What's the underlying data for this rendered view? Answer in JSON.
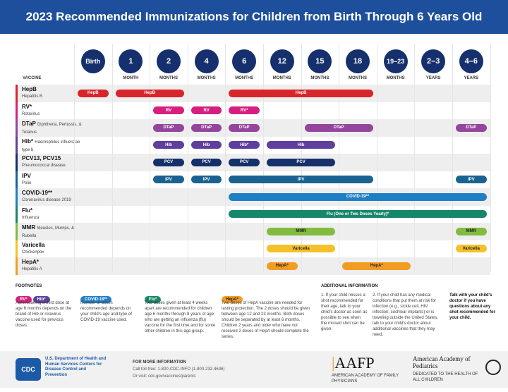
{
  "title": "2023 Recommended Immunizations for Children from Birth Through 6 Years Old",
  "vaccine_header": "VACCINE",
  "columns": [
    {
      "age": "Birth",
      "unit": ""
    },
    {
      "age": "1",
      "unit": "MONTH"
    },
    {
      "age": "2",
      "unit": "MONTHS"
    },
    {
      "age": "4",
      "unit": "MONTHS"
    },
    {
      "age": "6",
      "unit": "MONTHS"
    },
    {
      "age": "12",
      "unit": "MONTHS"
    },
    {
      "age": "15",
      "unit": "MONTHS"
    },
    {
      "age": "18",
      "unit": "MONTHS"
    },
    {
      "age": "19–23",
      "unit": "MONTHS"
    },
    {
      "age": "2–3",
      "unit": "YEARS"
    },
    {
      "age": "4–6",
      "unit": "YEARS"
    }
  ],
  "vaccines": [
    {
      "name": "HepB",
      "desc": "Hepatitis B",
      "inline": false,
      "color": "#d7262b",
      "doses": [
        {
          "label": "HepB",
          "from": 0,
          "to": 0
        },
        {
          "label": "HepB",
          "from": 1,
          "to": 2
        },
        {
          "label": "HepB",
          "from": 4,
          "to": 7
        }
      ]
    },
    {
      "name": "RV*",
      "desc": "Rotavirus",
      "inline": false,
      "color": "#d61f7f",
      "doses": [
        {
          "label": "RV",
          "from": 2,
          "to": 2
        },
        {
          "label": "RV",
          "from": 3,
          "to": 3
        },
        {
          "label": "RV*",
          "from": 4,
          "to": 4
        }
      ]
    },
    {
      "name": "DTaP",
      "desc": "Diphtheria, Pertussis, & Tetanus",
      "inline": true,
      "color": "#93469c",
      "doses": [
        {
          "label": "DTaP",
          "from": 2,
          "to": 2
        },
        {
          "label": "DTaP",
          "from": 3,
          "to": 3
        },
        {
          "label": "DTaP",
          "from": 4,
          "to": 4
        },
        {
          "label": "DTaP",
          "from": 6,
          "to": 7
        },
        {
          "label": "DTaP",
          "from": 10,
          "to": 10
        }
      ]
    },
    {
      "name": "Hib*",
      "desc": "Haemophilus influenzae type b",
      "inline": true,
      "color": "#5e3f9e",
      "doses": [
        {
          "label": "Hib",
          "from": 2,
          "to": 2
        },
        {
          "label": "Hib",
          "from": 3,
          "to": 3
        },
        {
          "label": "Hib*",
          "from": 4,
          "to": 4
        },
        {
          "label": "Hib",
          "from": 5,
          "to": 6
        }
      ]
    },
    {
      "name": "PCV13, PCV15",
      "desc": "Pneumococcal disease",
      "inline": false,
      "color": "#15306a",
      "doses": [
        {
          "label": "PCV",
          "from": 2,
          "to": 2
        },
        {
          "label": "PCV",
          "from": 3,
          "to": 3
        },
        {
          "label": "PCV",
          "from": 4,
          "to": 4
        },
        {
          "label": "PCV",
          "from": 5,
          "to": 6
        }
      ]
    },
    {
      "name": "IPV",
      "desc": "Polio",
      "inline": false,
      "color": "#1a6390",
      "doses": [
        {
          "label": "IPV",
          "from": 2,
          "to": 2
        },
        {
          "label": "IPV",
          "from": 3,
          "to": 3
        },
        {
          "label": "IPV",
          "from": 4,
          "to": 7
        },
        {
          "label": "IPV",
          "from": 10,
          "to": 10
        }
      ]
    },
    {
      "name": "COVID-19**",
      "desc": "Coronavirus disease 2019",
      "inline": false,
      "color": "#1f7fc6",
      "doses": [
        {
          "label": "COVID-19**",
          "from": 4,
          "to": 10
        }
      ]
    },
    {
      "name": "Flu*",
      "desc": "Influenza",
      "inline": false,
      "color": "#17866a",
      "doses": [
        {
          "label": "Flu (One or Two Doses Yearly)*",
          "from": 4,
          "to": 10
        }
      ]
    },
    {
      "name": "MMR",
      "desc": "Measles, Mumps, & Rubella",
      "inline": true,
      "color": "#82bb3f",
      "doses": [
        {
          "label": "MMR",
          "from": 5,
          "to": 6
        },
        {
          "label": "MMR",
          "from": 10,
          "to": 10
        }
      ]
    },
    {
      "name": "Varicella",
      "desc": "Chickenpox",
      "inline": false,
      "color": "#f5c12a",
      "doses": [
        {
          "label": "Varicella",
          "from": 5,
          "to": 6
        },
        {
          "label": "Varicella",
          "from": 10,
          "to": 10
        }
      ]
    },
    {
      "name": "HepA*",
      "desc": "Hepatitis A",
      "inline": false,
      "color": "#f39c24",
      "doses": [
        {
          "label": "HepA*",
          "from": 5,
          "to": 5
        },
        {
          "label": "HepA*",
          "from": 7,
          "to": 8
        }
      ]
    }
  ],
  "footnotes": {
    "heading": "FOOTNOTES",
    "items": [
      {
        "pills": [
          "RV*",
          "Hib*"
        ],
        "colors": [
          "#d61f7f",
          "#5e3f9e"
        ],
        "text": "Administering a third dose at age 6 months depends on the brand of Hib or rotavirus vaccine used for previous doses."
      },
      {
        "pills": [
          "COVID-19**"
        ],
        "colors": [
          "#1f7fc6"
        ],
        "text": "Number of doses recommended depends on your child's age and type of COVID-19 vaccine used."
      },
      {
        "pills": [
          "Flu*"
        ],
        "colors": [
          "#17866a"
        ],
        "text": "Two doses given at least 4 weeks apart are recommended for children age 6 months through 8 years of age who are getting an influenza (flu) vaccine for the first time and for some other children in this age group."
      },
      {
        "pills": [
          "HepA*"
        ],
        "colors": [
          "#f39c24"
        ],
        "text": "Two doses of HepA vaccine are needed for lasting protection. The 2 doses should be given between age 12 and 23 months. Both doses should be separated by at least 6 months. Children 2 years and older who have not received 2 doses of HepA should complete the series."
      }
    ]
  },
  "additional": {
    "heading": "ADDITIONAL INFORMATION",
    "item1": "1. If your child misses a shot recommended for their age, talk to your child's doctor as soon as possible to see when the missed shot can be given.",
    "item2": "2. If your child has any medical conditions that put them at risk for infection (e.g., sickle cell, HIV infection, cochlear implants) or is traveling outside the United States, talk to your child's doctor about additional vaccines that they may need.",
    "talk": "Talk with your child's doctor if you have questions about any shot recommended for your child."
  },
  "footer": {
    "hhs": "U.S. Department of Health and Human Services Centers for Disease Control and Prevention",
    "cdc_logo": "CDC",
    "more_heading": "FOR MORE INFORMATION",
    "call": "Call toll-free: 1-800-CDC-INFO (1-800-232-4636)",
    "visit": "Or visit: cdc.gov/vaccines/parents",
    "aafp": "AAFP",
    "aafp_sub": "AMERICAN ACADEMY OF FAMILY PHYSICIANS",
    "aap": "American Academy of Pediatrics",
    "aap_sub": "DEDICATED TO THE HEALTH OF ALL CHILDREN"
  }
}
